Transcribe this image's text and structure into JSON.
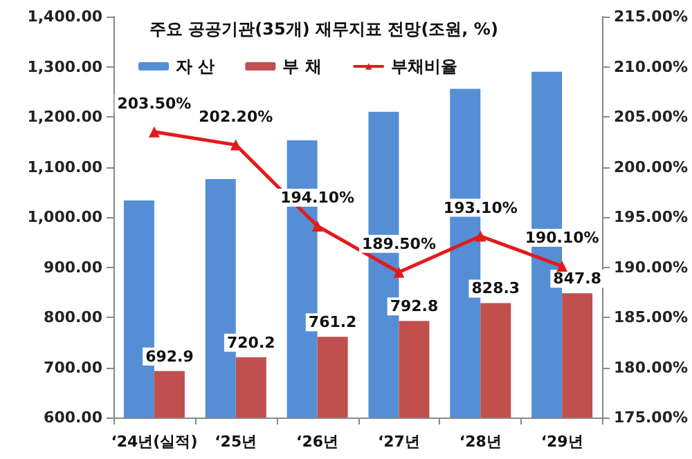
{
  "chart_data": {
    "type": "bar",
    "title": "주요 공공기관(35개) 재무지표 전망(조원, %)",
    "categories": [
      "‘24년(실적)",
      "‘25년",
      "‘26년",
      "‘27년",
      "‘28년",
      "‘29년"
    ],
    "series": [
      {
        "name": "자 산",
        "color": "#558ed5",
        "values": [
          1033,
          1076,
          1153,
          1210,
          1256,
          1290
        ]
      },
      {
        "name": "부 채",
        "color": "#c0504d",
        "values": [
          692.9,
          720.2,
          761.2,
          792.8,
          828.3,
          847.8
        ],
        "value_labels": [
          "692.9",
          "720.2",
          "761.2",
          "792.8",
          "828.3",
          "847.8"
        ]
      },
      {
        "name": "부채비율",
        "type": "line",
        "axis": "y2",
        "color": "#e31a1c",
        "marker": "triangle",
        "values": [
          203.5,
          202.2,
          194.1,
          189.5,
          193.1,
          190.1
        ],
        "value_labels": [
          "203.50%",
          "202.20%",
          "194.10%",
          "189.50%",
          "193.10%",
          "190.10%"
        ]
      }
    ],
    "ylim": [
      600,
      1400
    ],
    "yticks": [
      {
        "value": 600,
        "label": "600.00"
      },
      {
        "value": 700,
        "label": "700.00"
      },
      {
        "value": 800,
        "label": "800.00"
      },
      {
        "value": 900,
        "label": "900.00"
      },
      {
        "value": 1000,
        "label": "1,000.00"
      },
      {
        "value": 1100,
        "label": "1,100.00"
      },
      {
        "value": 1200,
        "label": "1,200.00"
      },
      {
        "value": 1300,
        "label": "1,300.00"
      },
      {
        "value": 1400,
        "label": "1,400.00"
      }
    ],
    "y2lim": [
      175,
      215
    ],
    "y2ticks": [
      {
        "value": 175,
        "label": "175.00%"
      },
      {
        "value": 180,
        "label": "180.00%"
      },
      {
        "value": 185,
        "label": "185.00%"
      },
      {
        "value": 190,
        "label": "190.00%"
      },
      {
        "value": 195,
        "label": "195.00%"
      },
      {
        "value": 200,
        "label": "200.00%"
      },
      {
        "value": 205,
        "label": "205.00%"
      },
      {
        "value": 210,
        "label": "210.00%"
      },
      {
        "value": 215,
        "label": "215.00%"
      }
    ],
    "grid": false,
    "legend": "top left"
  }
}
